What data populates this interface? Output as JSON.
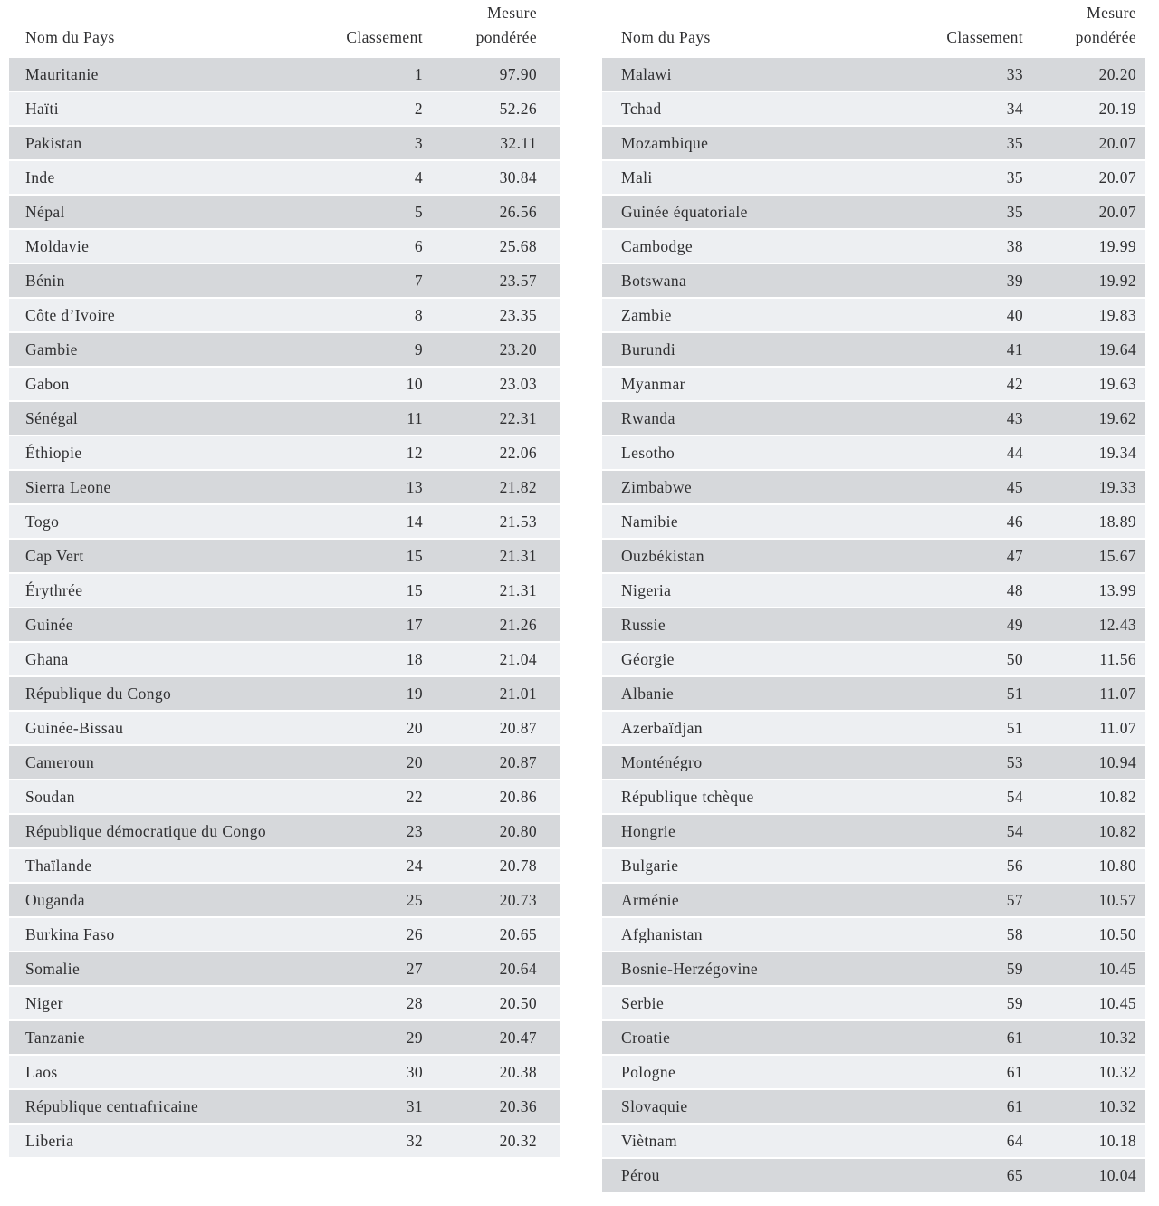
{
  "colors": {
    "page_background": "#ffffff",
    "stripe_dark": "#d6d8db",
    "stripe_light": "#edeff2",
    "text": "#2f2f31"
  },
  "columns": {
    "name": "Nom du Pays",
    "rank": "Classement",
    "measure_line1": "Mesure",
    "measure_line2": "pondérée"
  },
  "tables": [
    {
      "rows": [
        {
          "country": "Mauritanie",
          "rank": "1",
          "measure": "97.90"
        },
        {
          "country": "Haïti",
          "rank": "2",
          "measure": "52.26"
        },
        {
          "country": "Pakistan",
          "rank": "3",
          "measure": "32.11"
        },
        {
          "country": "Inde",
          "rank": "4",
          "measure": "30.84"
        },
        {
          "country": "Népal",
          "rank": "5",
          "measure": "26.56"
        },
        {
          "country": "Moldavie",
          "rank": "6",
          "measure": "25.68"
        },
        {
          "country": "Bénin",
          "rank": "7",
          "measure": "23.57"
        },
        {
          "country": "Côte d’Ivoire",
          "rank": "8",
          "measure": "23.35"
        },
        {
          "country": "Gambie",
          "rank": "9",
          "measure": "23.20"
        },
        {
          "country": "Gabon",
          "rank": "10",
          "measure": "23.03"
        },
        {
          "country": "Sénégal",
          "rank": "11",
          "measure": "22.31"
        },
        {
          "country": "Éthiopie",
          "rank": "12",
          "measure": "22.06"
        },
        {
          "country": "Sierra Leone",
          "rank": "13",
          "measure": "21.82"
        },
        {
          "country": "Togo",
          "rank": "14",
          "measure": "21.53"
        },
        {
          "country": "Cap Vert",
          "rank": "15",
          "measure": "21.31"
        },
        {
          "country": "Érythrée",
          "rank": "15",
          "measure": "21.31"
        },
        {
          "country": "Guinée",
          "rank": "17",
          "measure": "21.26"
        },
        {
          "country": "Ghana",
          "rank": "18",
          "measure": "21.04"
        },
        {
          "country": "République du Congo",
          "rank": "19",
          "measure": "21.01"
        },
        {
          "country": "Guinée-Bissau",
          "rank": "20",
          "measure": "20.87"
        },
        {
          "country": "Cameroun",
          "rank": "20",
          "measure": "20.87"
        },
        {
          "country": "Soudan",
          "rank": "22",
          "measure": "20.86"
        },
        {
          "country": "République démocratique du Congo",
          "rank": "23",
          "measure": "20.80"
        },
        {
          "country": "Thaïlande",
          "rank": "24",
          "measure": "20.78"
        },
        {
          "country": "Ouganda",
          "rank": "25",
          "measure": "20.73"
        },
        {
          "country": "Burkina Faso",
          "rank": "26",
          "measure": "20.65"
        },
        {
          "country": "Somalie",
          "rank": "27",
          "measure": "20.64"
        },
        {
          "country": "Niger",
          "rank": "28",
          "measure": "20.50"
        },
        {
          "country": "Tanzanie",
          "rank": "29",
          "measure": "20.47"
        },
        {
          "country": "Laos",
          "rank": "30",
          "measure": "20.38"
        },
        {
          "country": "République centrafricaine",
          "rank": "31",
          "measure": "20.36"
        },
        {
          "country": "Liberia",
          "rank": "32",
          "measure": "20.32"
        }
      ]
    },
    {
      "rows": [
        {
          "country": "Malawi",
          "rank": "33",
          "measure": "20.20"
        },
        {
          "country": "Tchad",
          "rank": "34",
          "measure": "20.19"
        },
        {
          "country": "Mozambique",
          "rank": "35",
          "measure": "20.07"
        },
        {
          "country": "Mali",
          "rank": "35",
          "measure": "20.07"
        },
        {
          "country": "Guinée équatoriale",
          "rank": "35",
          "measure": "20.07"
        },
        {
          "country": "Cambodge",
          "rank": "38",
          "measure": "19.99"
        },
        {
          "country": "Botswana",
          "rank": "39",
          "measure": "19.92"
        },
        {
          "country": "Zambie",
          "rank": "40",
          "measure": "19.83"
        },
        {
          "country": "Burundi",
          "rank": "41",
          "measure": "19.64"
        },
        {
          "country": "Myanmar",
          "rank": "42",
          "measure": "19.63"
        },
        {
          "country": "Rwanda",
          "rank": "43",
          "measure": "19.62"
        },
        {
          "country": "Lesotho",
          "rank": "44",
          "measure": "19.34"
        },
        {
          "country": "Zimbabwe",
          "rank": "45",
          "measure": "19.33"
        },
        {
          "country": "Namibie",
          "rank": "46",
          "measure": "18.89"
        },
        {
          "country": "Ouzbékistan",
          "rank": "47",
          "measure": "15.67"
        },
        {
          "country": "Nigeria",
          "rank": "48",
          "measure": "13.99"
        },
        {
          "country": "Russie",
          "rank": "49",
          "measure": "12.43"
        },
        {
          "country": "Géorgie",
          "rank": "50",
          "measure": "11.56"
        },
        {
          "country": "Albanie",
          "rank": "51",
          "measure": "11.07"
        },
        {
          "country": "Azerbaïdjan",
          "rank": "51",
          "measure": "11.07"
        },
        {
          "country": "Monténégro",
          "rank": "53",
          "measure": "10.94"
        },
        {
          "country": "République tchèque",
          "rank": "54",
          "measure": "10.82"
        },
        {
          "country": "Hongrie",
          "rank": "54",
          "measure": "10.82"
        },
        {
          "country": "Bulgarie",
          "rank": "56",
          "measure": "10.80"
        },
        {
          "country": "Arménie",
          "rank": "57",
          "measure": "10.57"
        },
        {
          "country": "Afghanistan",
          "rank": "58",
          "measure": "10.50"
        },
        {
          "country": "Bosnie-Herzégovine",
          "rank": "59",
          "measure": "10.45"
        },
        {
          "country": "Serbie",
          "rank": "59",
          "measure": "10.45"
        },
        {
          "country": "Croatie",
          "rank": "61",
          "measure": "10.32"
        },
        {
          "country": "Pologne",
          "rank": "61",
          "measure": "10.32"
        },
        {
          "country": "Slovaquie",
          "rank": "61",
          "measure": "10.32"
        },
        {
          "country": "Viètnam",
          "rank": "64",
          "measure": "10.18"
        },
        {
          "country": "Pérou",
          "rank": "65",
          "measure": "10.04"
        }
      ]
    }
  ]
}
